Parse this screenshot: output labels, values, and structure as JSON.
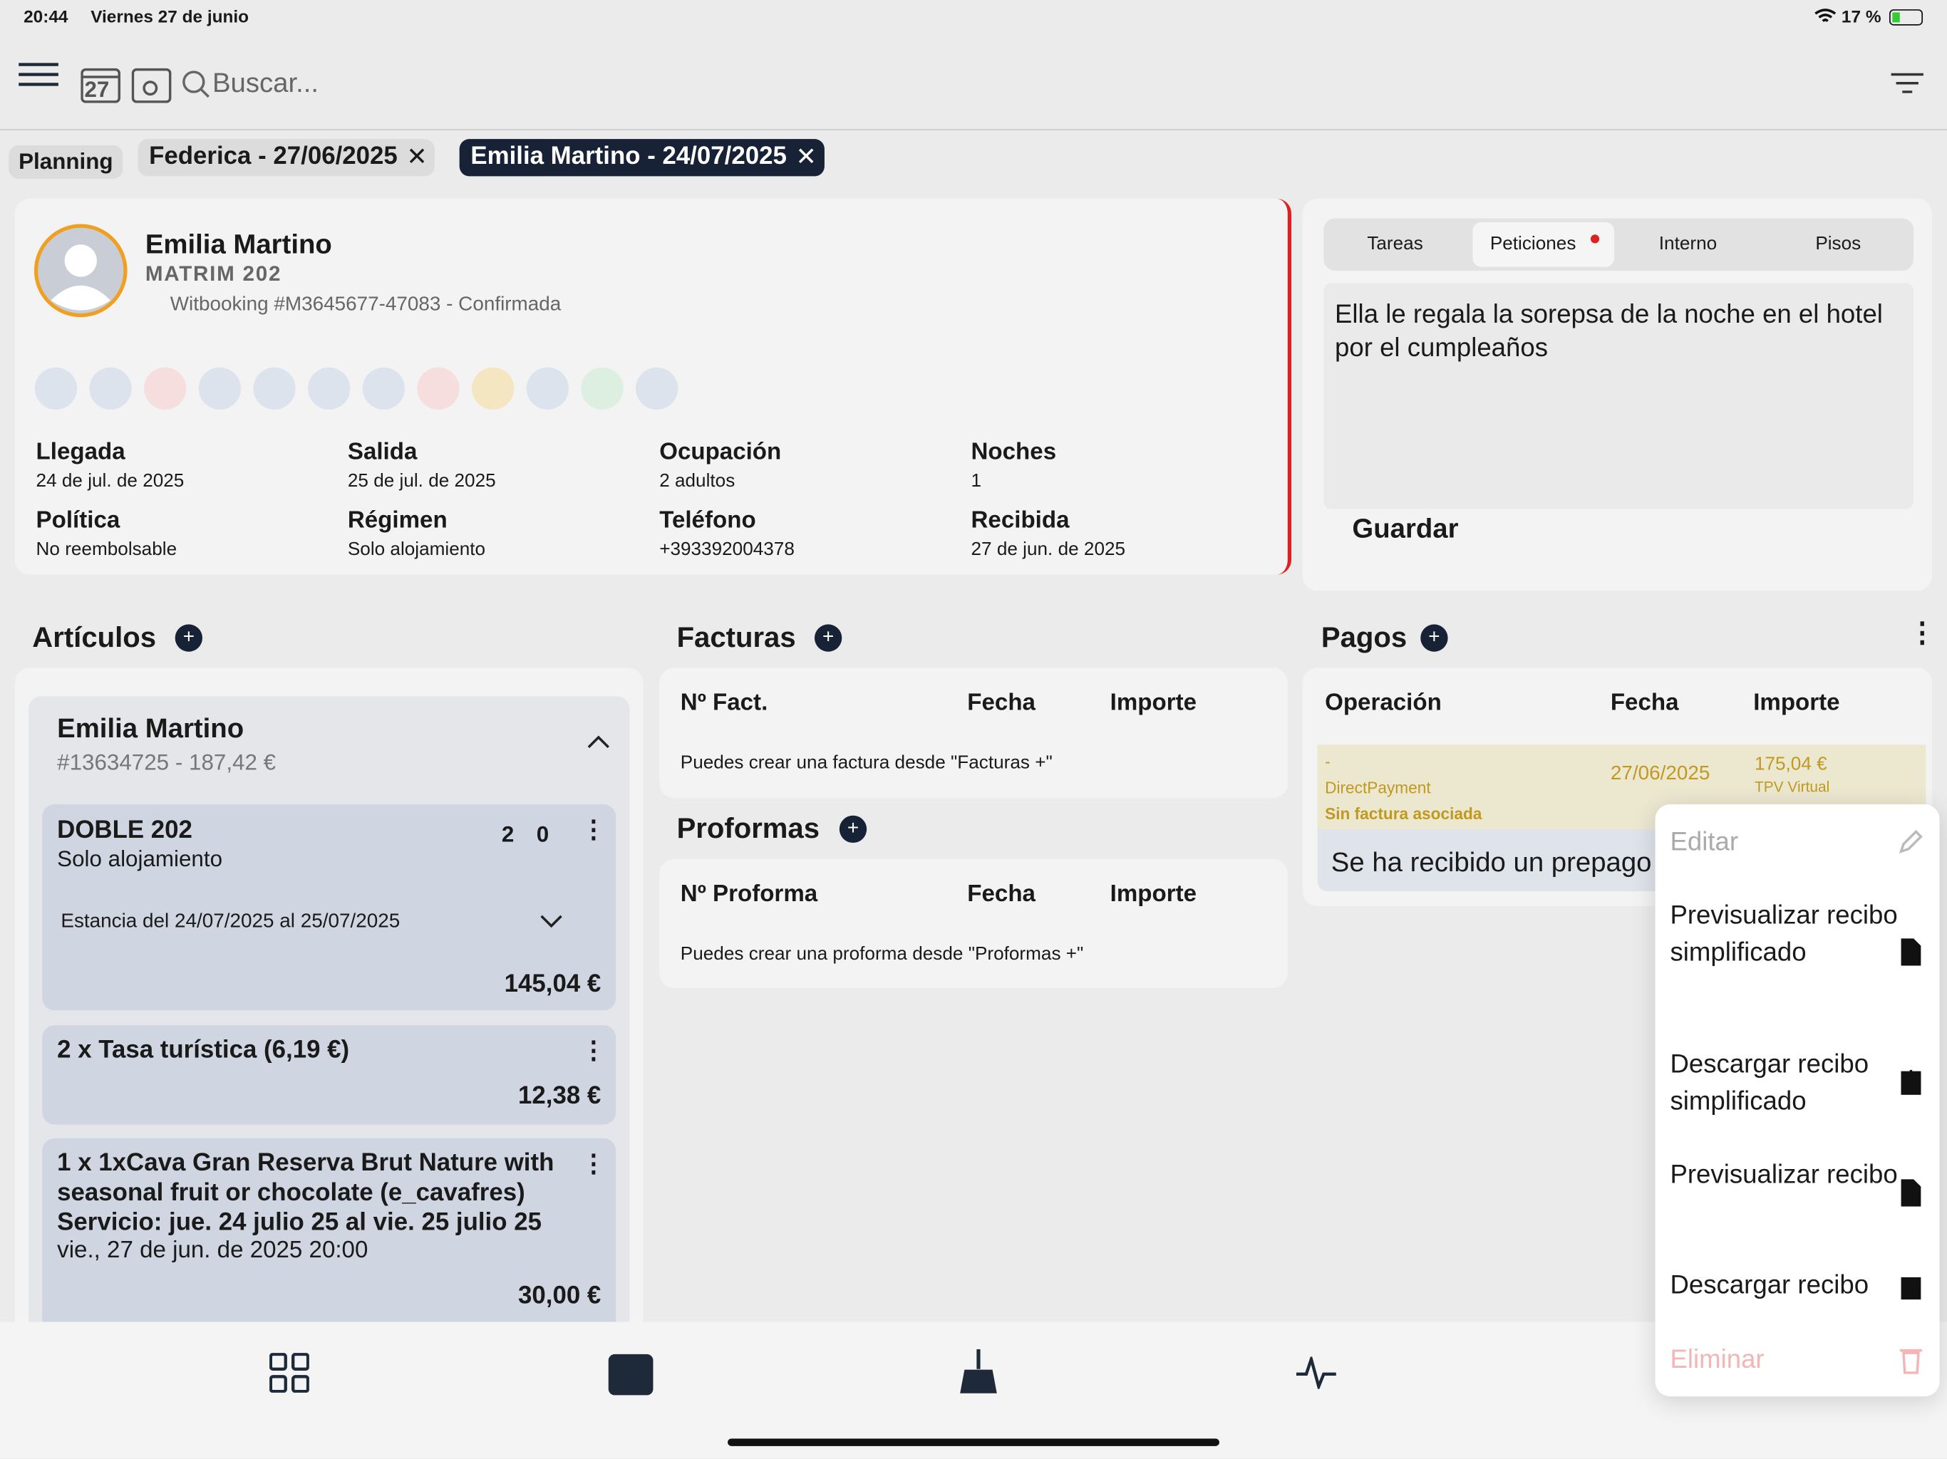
{
  "status_bar": {
    "time": "20:44",
    "date": "Viernes 27 de junio",
    "battery": "17 %"
  },
  "toolbar": {
    "calendar_day": "27",
    "search_placeholder": "Buscar..."
  },
  "tabs": [
    "Planning",
    "Federica - 27/06/2025",
    "Emilia Martino - 24/07/2025"
  ],
  "guest": {
    "name": "Emilia Martino",
    "room": "MATRIM 202",
    "source": "Witbooking #M3645677-47083 - Confirmada",
    "details": [
      {
        "label": "Llegada",
        "value": "24 de jul. de 2025"
      },
      {
        "label": "Salida",
        "value": "25 de jul. de 2025"
      },
      {
        "label": "Ocupación",
        "value": "2 adultos"
      },
      {
        "label": "Noches",
        "value": "1"
      },
      {
        "label": "Política",
        "value": "No reembolsable"
      },
      {
        "label": "Régimen",
        "value": "Solo alojamiento"
      },
      {
        "label": "Teléfono",
        "value": "+393392004378"
      },
      {
        "label": "Recibida",
        "value": "27 de jun. de 2025"
      }
    ]
  },
  "notes": {
    "tabs": [
      "Tareas",
      "Peticiones",
      "Interno",
      "Pisos"
    ],
    "text": "Ella le regala la sorepsa de la noche en el hotel por el cumpleaños",
    "save": "Guardar"
  },
  "articulos": {
    "title": "Artículos",
    "group_name": "Emilia Martino",
    "group_sub": "#13634725 - 187,42 €",
    "items": [
      {
        "title": "DOBLE 202",
        "subtitle": "Solo alojamiento",
        "adults": "2",
        "children": "0",
        "stay": "Estancia del 24/07/2025 al 25/07/2025",
        "amount": "145,04 €"
      },
      {
        "title": "2 x Tasa turística (6,19 €)",
        "amount": "12,38 €"
      },
      {
        "title": "1 x 1xCava Gran Reserva Brut Nature with seasonal fruit or chocolate (e_cavafres) Servicio: jue. 24 julio 25 al vie. 25 julio 25",
        "subtitle": "vie., 27 de jun. de 2025 20:00",
        "amount": "30,00 €"
      }
    ]
  },
  "facturas": {
    "title": "Facturas",
    "headers": [
      "Nº Fact.",
      "Fecha",
      "Importe"
    ],
    "empty": "Puedes crear una factura desde \"Facturas +\""
  },
  "proformas": {
    "title": "Proformas",
    "headers": [
      "Nº Proforma",
      "Fecha",
      "Importe"
    ],
    "empty": "Puedes crear una proforma desde \"Proformas +\""
  },
  "pagos": {
    "title": "Pagos",
    "headers": [
      "Operación",
      "Fecha",
      "Importe"
    ],
    "row": {
      "operation": "-",
      "method": "DirectPayment",
      "note": "Sin factura asociada",
      "date": "27/06/2025",
      "amount": "175,04 €",
      "terminal": "TPV Virtual"
    },
    "message": "Se ha recibido un prepago"
  },
  "menu": [
    "Editar",
    "Previsualizar recibo simplificado",
    "Descargar recibo simplificado",
    "Previsualizar recibo",
    "Descargar recibo",
    "Eliminar"
  ]
}
